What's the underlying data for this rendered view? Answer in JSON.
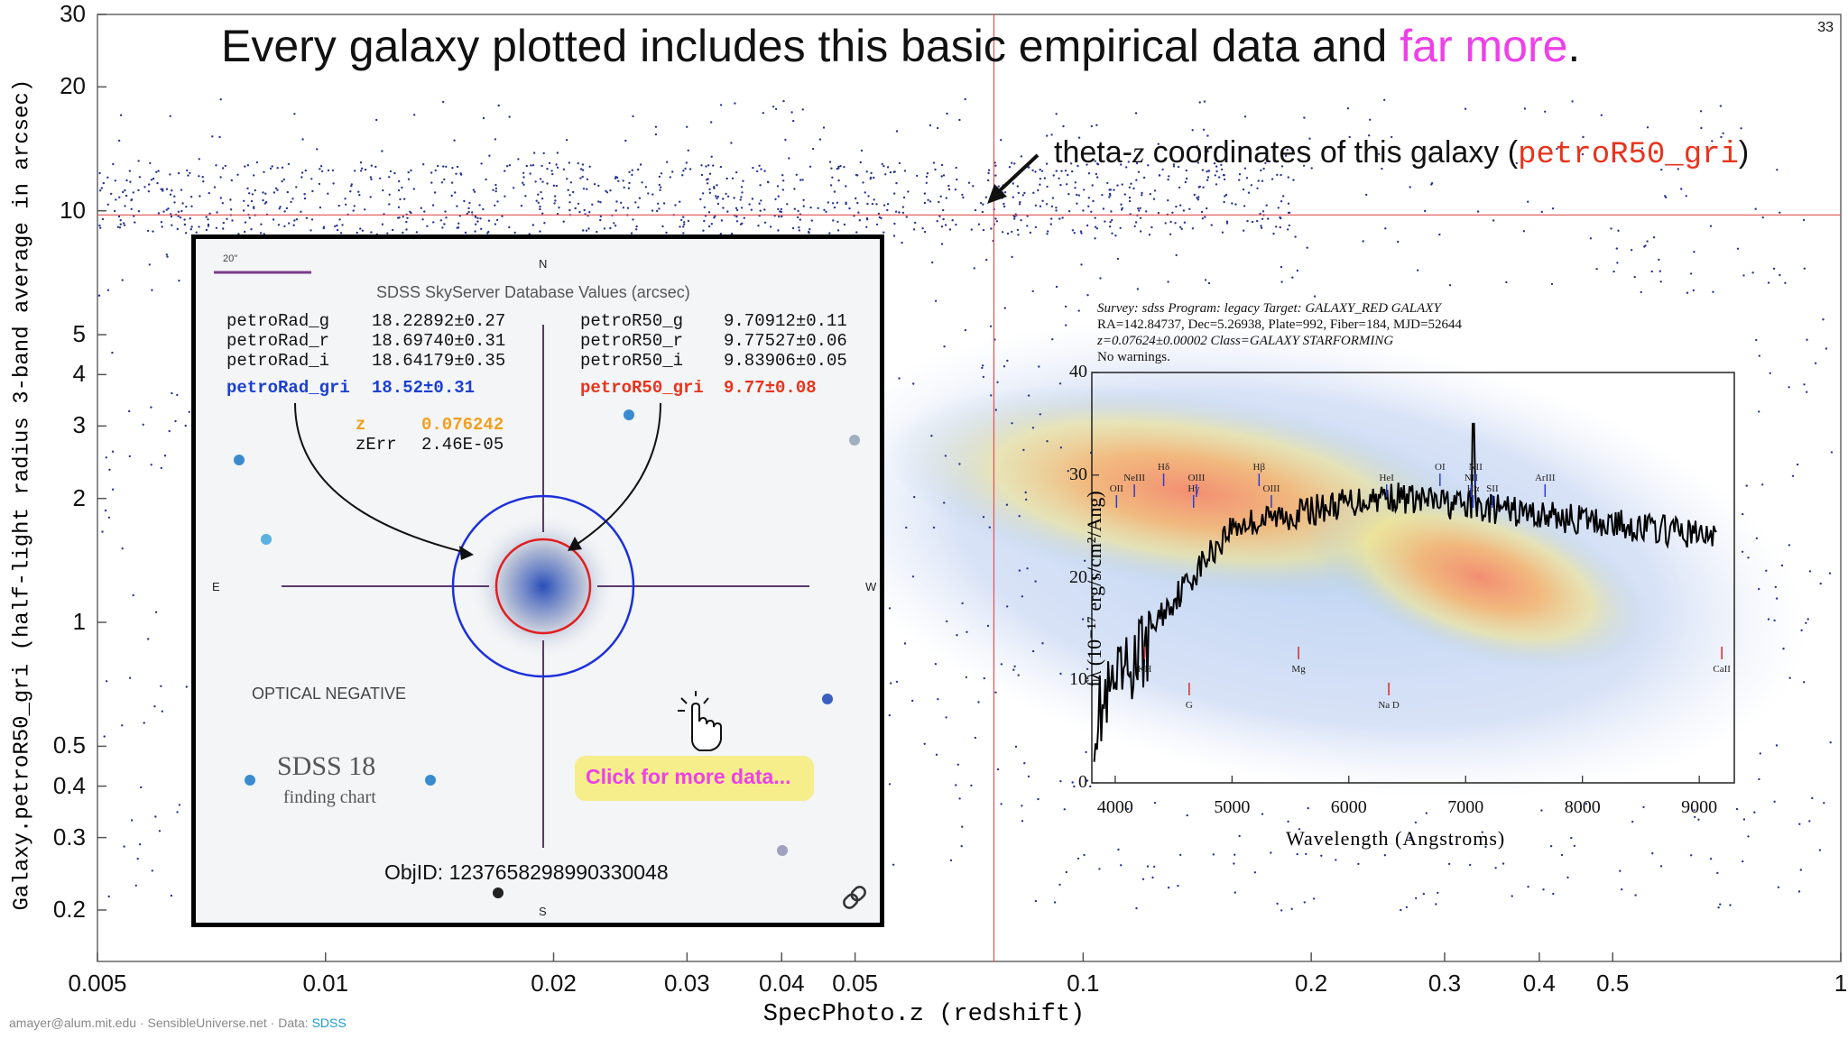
{
  "title": {
    "main": "Every galaxy plotted includes this basic empirical data and ",
    "highlight": "far more",
    "end": ".",
    "highlight_color": "#ee40e8"
  },
  "slide_number": "33",
  "theta_note": {
    "prefix": "theta-",
    "z": "z",
    "middle": " coordinates of this galaxy (",
    "code": "petroR50_gri",
    "suffix": ")"
  },
  "footer": {
    "text": "amayer@alum.mit.edu · SensibleUniverse.net · Data: ",
    "link": "SDSS"
  },
  "chart_data": {
    "type": "scatter",
    "title": "Every galaxy plotted includes this basic empirical data and far more.",
    "xlabel": "SpecPhoto.z (redshift)",
    "ylabel": "Galaxy.petroR50_gri (half-light radius 3-band average in arcsec)",
    "x_scale": "log",
    "y_scale": "log",
    "xlim": [
      0.005,
      1.0
    ],
    "ylim": [
      0.15,
      30
    ],
    "x_ticks": [
      "0.005",
      "0.01",
      "0.02",
      "0.03",
      "0.04",
      "0.05",
      "0.1",
      "0.2",
      "0.3",
      "0.4",
      "0.5",
      "1"
    ],
    "x_tick_values": [
      0.005,
      0.01,
      0.02,
      0.03,
      0.04,
      0.05,
      0.1,
      0.2,
      0.3,
      0.4,
      0.5,
      1
    ],
    "y_ticks": [
      "0.2",
      "0.3",
      "0.4",
      "0.5",
      "1",
      "2",
      "3",
      "4",
      "5",
      "10",
      "20",
      "30"
    ],
    "y_tick_values": [
      0.2,
      0.3,
      0.4,
      0.5,
      1,
      2,
      3,
      4,
      5,
      10,
      20,
      30
    ],
    "highlighted_galaxy": {
      "z": 0.076242,
      "petroR50_gri": 9.77
    },
    "annotation": "theta-z coordinates of this galaxy (petroR50_gri)"
  },
  "finding_chart": {
    "scale_label": "20\"",
    "compass": {
      "n": "N",
      "s": "S",
      "e": "E",
      "w": "W"
    },
    "db_header": "SDSS SkyServer Database Values (arcsec)",
    "left_rows": [
      {
        "name": "petroRad_g",
        "value": "18.22892±0.27"
      },
      {
        "name": "petroRad_r",
        "value": "18.69740±0.31"
      },
      {
        "name": "petroRad_i",
        "value": "18.64179±0.35"
      }
    ],
    "left_avg": {
      "name": "petroRad_gri",
      "value": "18.52±0.31"
    },
    "right_rows": [
      {
        "name": "petroR50_g",
        "value": "9.70912±0.11"
      },
      {
        "name": "petroR50_r",
        "value": "9.77527±0.06"
      },
      {
        "name": "petroR50_i",
        "value": "9.83906±0.05"
      }
    ],
    "right_avg": {
      "name": "petroR50_gri",
      "value": "9.77±0.08"
    },
    "z_label": "z",
    "z_value": "0.076242",
    "zerr_label": "zErr",
    "zerr_value": "2.46E-05",
    "optical_negative": "OPTICAL NEGATIVE",
    "sdss_title": "SDSS 18",
    "sdss_subtitle": "finding chart",
    "click_text": "Click for more data...",
    "objid": "ObjID: 1237658298990330048"
  },
  "spectrum": {
    "header_lines": [
      "Survey: sdss Program: legacy Target: GALAXY_RED GALAXY",
      "RA=142.84737, Dec=5.26938, Plate=992, Fiber=184, MJD=52644",
      "z=0.07624±0.00002 Class=GALAXY STARFORMING",
      "No warnings."
    ],
    "xlabel": "Wavelength (Angstroms)",
    "ylabel": "fλ (10⁻¹⁷ erg/s/cm²/Ang)",
    "x_ticks": [
      "4000",
      "5000",
      "6000",
      "7000",
      "8000",
      "9000"
    ],
    "y_ticks": [
      "0",
      "10",
      "20",
      "30",
      "40"
    ],
    "line_ids": [
      "OII",
      "NeIII",
      "Hδ",
      "Hγ",
      "OIII",
      "Hβ",
      "OIII",
      "HeI",
      "OI",
      "Hα",
      "NII",
      "NII",
      "SII",
      "ArIII",
      "KH",
      "G",
      "Mg",
      "Na D",
      "CaII"
    ]
  }
}
